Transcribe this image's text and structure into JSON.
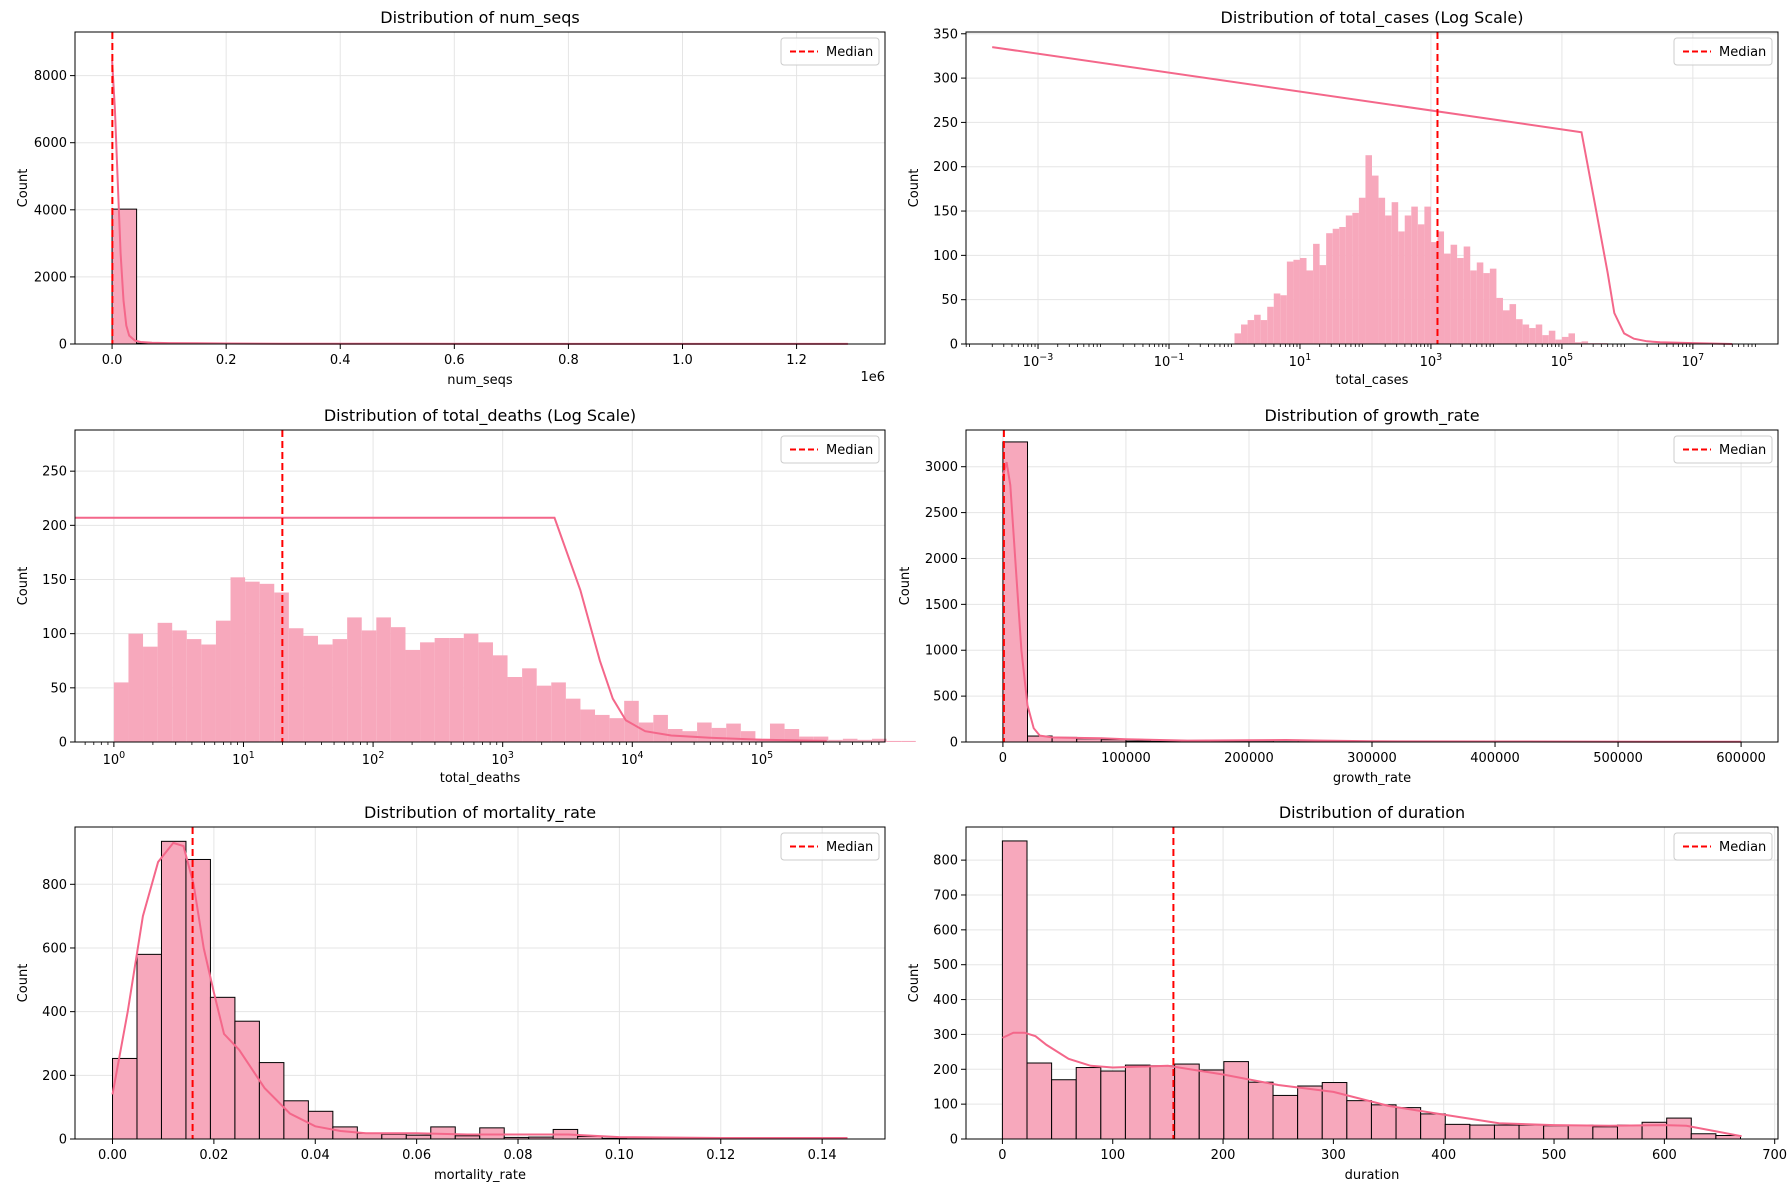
{
  "figure": {
    "bar_color": "#f7a8bc",
    "kde_color": "#f4678a",
    "median_color": "#ff0000",
    "grid_color": "#e5e5e5",
    "legend_label": "Median"
  },
  "chart_data": [
    {
      "type": "bar",
      "title": "Distribution of num_seqs",
      "xlabel": "num_seqs",
      "ylabel": "Count",
      "x_scale": "linear",
      "xlim": [
        -65000,
        1355000
      ],
      "ylim": [
        0,
        9300
      ],
      "x_ticks": [
        0,
        200000,
        400000,
        600000,
        800000,
        1000000,
        1200000
      ],
      "x_tick_labels": [
        "0.0",
        "0.2",
        "0.4",
        "0.6",
        "0.8",
        "1.0",
        "1.2"
      ],
      "x_offset_label": "1e6",
      "y_ticks": [
        0,
        2000,
        4000,
        6000,
        8000
      ],
      "y_tick_labels": [
        "0",
        "2000",
        "4000",
        "6000",
        "8000"
      ],
      "bins": {
        "start": 0,
        "width": 43000,
        "edges": true,
        "values": [
          4020,
          22,
          10,
          6,
          4,
          3,
          2,
          2,
          2,
          2,
          2,
          1,
          1,
          1,
          1,
          1,
          1,
          1,
          1,
          1,
          1,
          1,
          1,
          1,
          1,
          1,
          1,
          1,
          1,
          1
        ]
      },
      "kde": {
        "x": [
          0,
          5000,
          10000,
          15000,
          20000,
          25000,
          30000,
          40000,
          50000,
          70000,
          100000,
          150000,
          200000,
          300000,
          500000,
          800000,
          1000000,
          1290000
        ],
        "y": [
          8450,
          7000,
          4800,
          2700,
          1300,
          550,
          250,
          100,
          60,
          40,
          28,
          20,
          15,
          10,
          6,
          4,
          3,
          2
        ]
      },
      "median": 500,
      "grid": true,
      "legend": "upper right"
    },
    {
      "type": "bar",
      "title": "Distribution of total_cases (Log Scale)",
      "xlabel": "total_cases",
      "ylabel": "Count",
      "x_scale": "log",
      "xlim": [
        -4.1,
        8.3
      ],
      "ylim": [
        0,
        352
      ],
      "x_ticks": [
        -3,
        -1,
        1,
        3,
        5,
        7
      ],
      "x_tick_labels": [
        "10",
        "10",
        "10",
        "10",
        "10",
        "10"
      ],
      "x_tick_exponents": [
        "−3",
        "−1",
        "1",
        "3",
        "5",
        "7"
      ],
      "y_ticks": [
        0,
        50,
        100,
        150,
        200,
        250,
        300,
        350
      ],
      "y_tick_labels": [
        "0",
        "50",
        "100",
        "150",
        "200",
        "250",
        "300",
        "350"
      ],
      "bins": {
        "start": 0,
        "width": 0.1,
        "edges": false,
        "values": [
          12,
          22,
          27,
          33,
          27,
          42,
          57,
          55,
          93,
          95,
          97,
          83,
          113,
          89,
          125,
          130,
          132,
          145,
          148,
          165,
          213,
          190,
          165,
          145,
          160,
          127,
          145,
          155,
          135,
          155,
          115,
          127,
          102,
          112,
          97,
          110,
          83,
          92,
          80,
          85,
          52,
          38,
          45,
          28,
          22,
          18,
          22,
          10,
          15,
          5,
          8,
          12,
          2,
          3,
          1,
          1,
          1
        ]
      },
      "kde": {
        "x": [
          -3.7,
          5.3,
          5.5,
          5.7,
          5.8,
          5.95,
          6.1,
          6.3,
          6.5,
          7.0,
          7.6
        ],
        "y": [
          335,
          239,
          160,
          80,
          35,
          12,
          6,
          3,
          2,
          1,
          0
        ]
      },
      "median": 3.1,
      "grid": true,
      "legend": "upper right"
    },
    {
      "type": "bar",
      "title": "Distribution of total_deaths (Log Scale)",
      "xlabel": "total_deaths",
      "ylabel": "Count",
      "x_scale": "log",
      "xlim": [
        -0.3,
        5.95
      ],
      "ylim": [
        0,
        288
      ],
      "x_ticks": [
        0,
        1,
        2,
        3,
        4,
        5
      ],
      "x_tick_labels": [
        "10",
        "10",
        "10",
        "10",
        "10",
        "10"
      ],
      "x_tick_exponents": [
        "0",
        "1",
        "2",
        "3",
        "4",
        "5"
      ],
      "y_ticks": [
        0,
        50,
        100,
        150,
        200,
        250
      ],
      "y_tick_labels": [
        "0",
        "50",
        "100",
        "150",
        "200",
        "250"
      ],
      "bins": {
        "start": 0,
        "width": 0.1125,
        "edges": false,
        "values": [
          55,
          100,
          88,
          110,
          103,
          95,
          90,
          112,
          152,
          148,
          146,
          138,
          105,
          98,
          90,
          95,
          115,
          103,
          115,
          106,
          85,
          92,
          96,
          96,
          100,
          92,
          80,
          60,
          68,
          52,
          55,
          40,
          30,
          25,
          22,
          38,
          18,
          25,
          12,
          10,
          18,
          13,
          17,
          10,
          3,
          17,
          12,
          5,
          5,
          2,
          3,
          2,
          3,
          1,
          1
        ]
      },
      "kde": {
        "x": [
          -0.3,
          3.4,
          3.6,
          3.75,
          3.85,
          3.95,
          4.1,
          4.3,
          4.6,
          5.0,
          5.5
        ],
        "y": [
          207,
          207,
          140,
          75,
          40,
          20,
          10,
          6,
          4,
          2,
          1
        ]
      },
      "median": 1.3,
      "grid": true,
      "legend": "upper right"
    },
    {
      "type": "bar",
      "title": "Distribution of growth_rate",
      "xlabel": "growth_rate",
      "ylabel": "Count",
      "x_scale": "linear",
      "xlim": [
        -30000,
        630000
      ],
      "ylim": [
        0,
        3400
      ],
      "x_ticks": [
        0,
        100000,
        200000,
        300000,
        400000,
        500000,
        600000
      ],
      "x_tick_labels": [
        "0",
        "100000",
        "200000",
        "300000",
        "400000",
        "500000",
        "600000"
      ],
      "y_ticks": [
        0,
        500,
        1000,
        1500,
        2000,
        2500,
        3000
      ],
      "y_tick_labels": [
        "0",
        "500",
        "1000",
        "1500",
        "2000",
        "2500",
        "3000"
      ],
      "bins": {
        "start": 0,
        "width": 20000,
        "edges": true,
        "values": [
          3270,
          65,
          50,
          35,
          25,
          10,
          8,
          6,
          5,
          5,
          4,
          3,
          3,
          2,
          2,
          2,
          2,
          2,
          1,
          1,
          1,
          1,
          1,
          1,
          1,
          1,
          1,
          1,
          1,
          1
        ]
      },
      "kde": {
        "x": [
          0,
          3000,
          6000,
          10000,
          15000,
          20000,
          25000,
          30000,
          40000,
          60000,
          80000,
          100000,
          150000,
          200000,
          230000,
          260000,
          300000,
          400000,
          600000
        ],
        "y": [
          2900,
          3050,
          2800,
          2000,
          1000,
          400,
          150,
          70,
          50,
          45,
          40,
          30,
          15,
          20,
          22,
          15,
          8,
          5,
          2
        ]
      },
      "median": 800,
      "grid": true,
      "legend": "upper right"
    },
    {
      "type": "bar",
      "title": "Distribution of mortality_rate",
      "xlabel": "mortality_rate",
      "ylabel": "Count",
      "x_scale": "linear",
      "xlim": [
        -0.0074,
        0.1524
      ],
      "ylim": [
        0,
        980
      ],
      "x_ticks": [
        0,
        0.02,
        0.04,
        0.06,
        0.08,
        0.1,
        0.12,
        0.14
      ],
      "x_tick_labels": [
        "0.00",
        "0.02",
        "0.04",
        "0.06",
        "0.08",
        "0.10",
        "0.12",
        "0.14"
      ],
      "y_ticks": [
        0,
        200,
        400,
        600,
        800
      ],
      "y_tick_labels": [
        "0",
        "200",
        "400",
        "600",
        "800"
      ],
      "bins": {
        "start": 0,
        "width": 0.00483,
        "edges": true,
        "values": [
          253,
          580,
          935,
          878,
          445,
          370,
          240,
          120,
          87,
          38,
          18,
          15,
          12,
          38,
          10,
          35,
          5,
          6,
          30,
          8,
          2,
          1,
          1,
          1,
          1,
          1,
          1,
          1,
          1,
          1
        ]
      },
      "kde": {
        "x": [
          0,
          0.003,
          0.006,
          0.009,
          0.012,
          0.014,
          0.016,
          0.018,
          0.02,
          0.022,
          0.025,
          0.03,
          0.035,
          0.04,
          0.045,
          0.05,
          0.06,
          0.07,
          0.09,
          0.1,
          0.12,
          0.145
        ],
        "y": [
          140,
          400,
          700,
          870,
          930,
          920,
          800,
          600,
          460,
          330,
          280,
          160,
          80,
          40,
          25,
          18,
          18,
          14,
          14,
          6,
          3,
          3
        ]
      },
      "median": 0.0158,
      "grid": true,
      "legend": "upper right"
    },
    {
      "type": "bar",
      "title": "Distribution of duration",
      "xlabel": "duration",
      "ylabel": "Count",
      "x_scale": "linear",
      "xlim": [
        -33,
        703
      ],
      "ylim": [
        0,
        895
      ],
      "x_ticks": [
        0,
        100,
        200,
        300,
        400,
        500,
        600,
        700
      ],
      "x_tick_labels": [
        "0",
        "100",
        "200",
        "300",
        "400",
        "500",
        "600",
        "700"
      ],
      "y_ticks": [
        0,
        100,
        200,
        300,
        400,
        500,
        600,
        700,
        800
      ],
      "y_tick_labels": [
        "0",
        "100",
        "200",
        "300",
        "400",
        "500",
        "600",
        "700",
        "800"
      ],
      "bins": {
        "start": 0,
        "width": 22.3,
        "edges": true,
        "values": [
          855,
          218,
          170,
          205,
          195,
          212,
          210,
          215,
          198,
          222,
          163,
          125,
          152,
          162,
          110,
          98,
          90,
          72,
          42,
          40,
          40,
          40,
          38,
          40,
          35,
          40,
          48,
          60,
          15,
          10
        ]
      },
      "kde": {
        "x": [
          0,
          10,
          20,
          30,
          40,
          60,
          80,
          100,
          150,
          200,
          250,
          300,
          350,
          400,
          450,
          500,
          550,
          600,
          620,
          650,
          670
        ],
        "y": [
          290,
          305,
          305,
          295,
          270,
          230,
          210,
          205,
          210,
          185,
          155,
          135,
          95,
          70,
          45,
          40,
          38,
          40,
          38,
          20,
          8
        ]
      },
      "median": 155,
      "grid": true,
      "legend": "upper right"
    }
  ]
}
